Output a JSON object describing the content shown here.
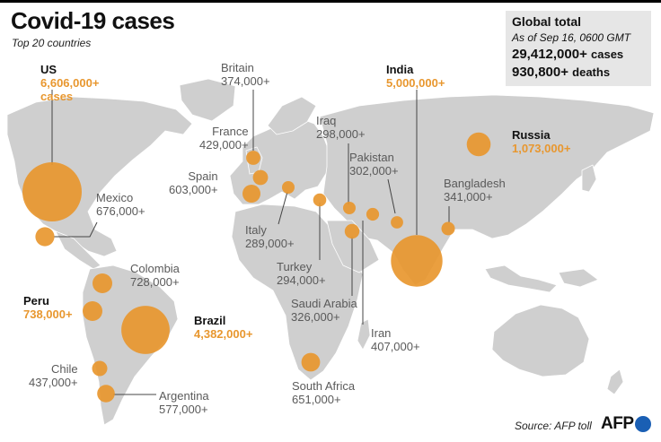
{
  "title": "Covid-19 cases",
  "subtitle": "Top 20 countries",
  "global_total": {
    "heading": "Global total",
    "as_of": "As of Sep 16, 0600 GMT",
    "cases_value": "29,412,000+",
    "cases_unit": "cases",
    "deaths_value": "930,800+",
    "deaths_unit": "deaths"
  },
  "source": "Source: AFP toll",
  "logo_text": "AFP",
  "colors": {
    "bubble": "#e8972f",
    "land": "#cfcfcf",
    "panel": "#e6e6e6",
    "logo": "#1a5fb4"
  },
  "countries": [
    {
      "key": "us",
      "name": "US",
      "value": "6,606,000+",
      "unit": "cases",
      "cases": 6606000,
      "highlight": true
    },
    {
      "key": "india",
      "name": "India",
      "value": "5,000,000+",
      "cases": 5000000,
      "highlight": true
    },
    {
      "key": "brazil",
      "name": "Brazil",
      "value": "4,382,000+",
      "cases": 4382000,
      "highlight": true
    },
    {
      "key": "russia",
      "name": "Russia",
      "value": "1,073,000+",
      "cases": 1073000,
      "highlight": true
    },
    {
      "key": "peru",
      "name": "Peru",
      "value": "738,000+",
      "cases": 738000,
      "highlight": true
    },
    {
      "key": "colombia",
      "name": "Colombia",
      "value": "728,000+",
      "cases": 728000
    },
    {
      "key": "mexico",
      "name": "Mexico",
      "value": "676,000+",
      "cases": 676000
    },
    {
      "key": "south-africa",
      "name": "South Africa",
      "value": "651,000+",
      "cases": 651000
    },
    {
      "key": "spain",
      "name": "Spain",
      "value": "603,000+",
      "cases": 603000
    },
    {
      "key": "argentina",
      "name": "Argentina",
      "value": "577,000+",
      "cases": 577000
    },
    {
      "key": "chile",
      "name": "Chile",
      "value": "437,000+",
      "cases": 437000
    },
    {
      "key": "france",
      "name": "France",
      "value": "429,000+",
      "cases": 429000
    },
    {
      "key": "iran",
      "name": "Iran",
      "value": "407,000+",
      "cases": 407000
    },
    {
      "key": "britain",
      "name": "Britain",
      "value": "374,000+",
      "cases": 374000
    },
    {
      "key": "bangladesh",
      "name": "Bangladesh",
      "value": "341,000+",
      "cases": 341000
    },
    {
      "key": "saudi-arabia",
      "name": "Saudi Arabia",
      "value": "326,000+",
      "cases": 326000
    },
    {
      "key": "pakistan",
      "name": "Pakistan",
      "value": "302,000+",
      "cases": 302000
    },
    {
      "key": "iraq",
      "name": "Iraq",
      "value": "298,000+",
      "cases": 298000
    },
    {
      "key": "turkey",
      "name": "Turkey",
      "value": "294,000+",
      "cases": 294000
    },
    {
      "key": "italy",
      "name": "Italy",
      "value": "289,000+",
      "cases": 289000
    }
  ]
}
